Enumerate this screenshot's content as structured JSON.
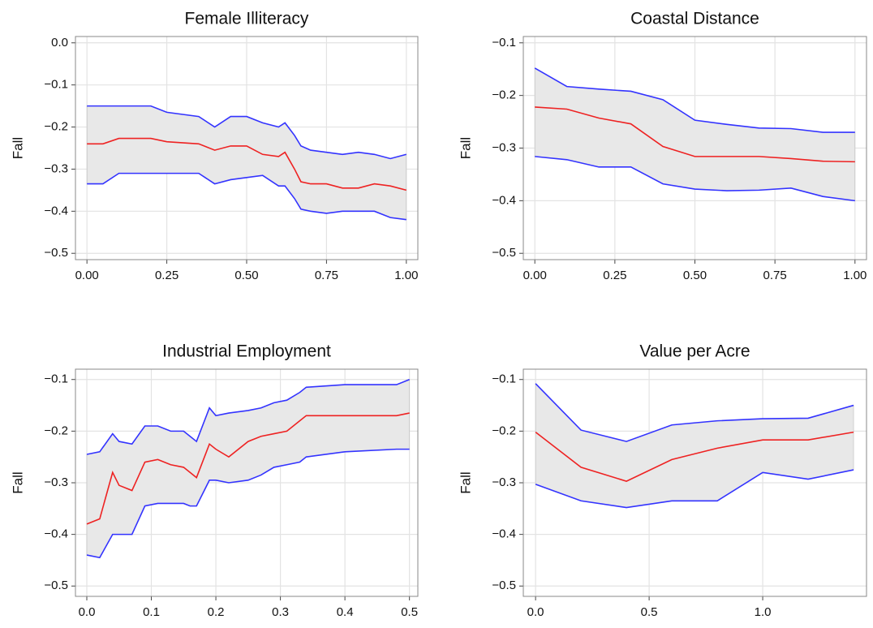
{
  "chart_data": [
    {
      "type": "line",
      "title": "Female Illiteracy",
      "ylabel": "Fall",
      "band_color": "#e8e8e8",
      "grid": true,
      "x": [
        0,
        0.05,
        0.1,
        0.2,
        0.25,
        0.35,
        0.4,
        0.45,
        0.5,
        0.55,
        0.6,
        0.62,
        0.65,
        0.67,
        0.7,
        0.75,
        0.8,
        0.85,
        0.9,
        0.95,
        1.0
      ],
      "series": [
        {
          "color": "#3333ff",
          "values": [
            -0.15,
            -0.15,
            -0.15,
            -0.15,
            -0.165,
            -0.175,
            -0.2,
            -0.175,
            -0.175,
            -0.19,
            -0.2,
            -0.19,
            -0.22,
            -0.245,
            -0.255,
            -0.26,
            -0.265,
            -0.26,
            -0.265,
            -0.275,
            -0.265
          ]
        },
        {
          "color": "#ee2222",
          "values": [
            -0.24,
            -0.24,
            -0.227,
            -0.227,
            -0.235,
            -0.24,
            -0.255,
            -0.245,
            -0.245,
            -0.265,
            -0.27,
            -0.26,
            -0.3,
            -0.33,
            -0.335,
            -0.335,
            -0.345,
            -0.345,
            -0.335,
            -0.34,
            -0.35
          ]
        },
        {
          "color": "#3333ff",
          "values": [
            -0.335,
            -0.335,
            -0.31,
            -0.31,
            -0.31,
            -0.31,
            -0.335,
            -0.325,
            -0.32,
            -0.315,
            -0.34,
            -0.34,
            -0.37,
            -0.395,
            -0.4,
            -0.405,
            -0.4,
            -0.4,
            -0.4,
            -0.415,
            -0.42
          ]
        }
      ],
      "xlim": [
        -0.036,
        1.036
      ],
      "ylim": [
        -0.515,
        0.015
      ],
      "xticks": [
        {
          "value": 0,
          "label": "0.00"
        },
        {
          "value": 0.25,
          "label": "0.25"
        },
        {
          "value": 0.5,
          "label": "0.50"
        },
        {
          "value": 0.75,
          "label": "0.75"
        },
        {
          "value": 1,
          "label": "1.00"
        }
      ],
      "yticks": [
        {
          "value": 0,
          "label": "0.0"
        },
        {
          "value": -0.1,
          "label": "−0.1"
        },
        {
          "value": -0.2,
          "label": "−0.2"
        },
        {
          "value": -0.3,
          "label": "−0.3"
        },
        {
          "value": -0.4,
          "label": "−0.4"
        },
        {
          "value": -0.5,
          "label": "−0.5"
        }
      ]
    },
    {
      "type": "line",
      "title": "Coastal Distance",
      "ylabel": "Fall",
      "band_color": "#e8e8e8",
      "grid": true,
      "x": [
        0,
        0.1,
        0.2,
        0.3,
        0.4,
        0.5,
        0.6,
        0.7,
        0.8,
        0.9,
        1.0
      ],
      "series": [
        {
          "color": "#3333ff",
          "values": [
            -0.148,
            -0.183,
            -0.188,
            -0.192,
            -0.208,
            -0.247,
            -0.255,
            -0.262,
            -0.263,
            -0.27,
            -0.27
          ]
        },
        {
          "color": "#ee2222",
          "values": [
            -0.222,
            -0.226,
            -0.243,
            -0.254,
            -0.297,
            -0.316,
            -0.316,
            -0.316,
            -0.32,
            -0.325,
            -0.326
          ]
        },
        {
          "color": "#3333ff",
          "values": [
            -0.316,
            -0.322,
            -0.336,
            -0.336,
            -0.368,
            -0.378,
            -0.381,
            -0.38,
            -0.376,
            -0.392,
            -0.4
          ]
        }
      ],
      "xlim": [
        -0.036,
        1.036
      ],
      "ylim": [
        -0.512,
        -0.088
      ],
      "xticks": [
        {
          "value": 0,
          "label": "0.00"
        },
        {
          "value": 0.25,
          "label": "0.25"
        },
        {
          "value": 0.5,
          "label": "0.50"
        },
        {
          "value": 0.75,
          "label": "0.75"
        },
        {
          "value": 1,
          "label": "1.00"
        }
      ],
      "yticks": [
        {
          "value": -0.1,
          "label": "−0.1"
        },
        {
          "value": -0.2,
          "label": "−0.2"
        },
        {
          "value": -0.3,
          "label": "−0.3"
        },
        {
          "value": -0.4,
          "label": "−0.4"
        },
        {
          "value": -0.5,
          "label": "−0.5"
        }
      ]
    },
    {
      "type": "line",
      "title": "Industrial Employment",
      "ylabel": "Fall",
      "band_color": "#e8e8e8",
      "grid": true,
      "x": [
        0,
        0.02,
        0.04,
        0.05,
        0.07,
        0.09,
        0.11,
        0.13,
        0.15,
        0.16,
        0.17,
        0.19,
        0.2,
        0.22,
        0.25,
        0.27,
        0.29,
        0.31,
        0.33,
        0.34,
        0.4,
        0.48,
        0.5
      ],
      "series": [
        {
          "color": "#3333ff",
          "values": [
            -0.245,
            -0.24,
            -0.205,
            -0.22,
            -0.225,
            -0.19,
            -0.19,
            -0.2,
            -0.2,
            -0.21,
            -0.22,
            -0.155,
            -0.17,
            -0.165,
            -0.16,
            -0.155,
            -0.145,
            -0.14,
            -0.125,
            -0.115,
            -0.11,
            -0.11,
            -0.1
          ]
        },
        {
          "color": "#ee2222",
          "values": [
            -0.38,
            -0.37,
            -0.28,
            -0.305,
            -0.315,
            -0.26,
            -0.255,
            -0.265,
            -0.27,
            -0.28,
            -0.29,
            -0.225,
            -0.235,
            -0.25,
            -0.22,
            -0.21,
            -0.205,
            -0.2,
            -0.18,
            -0.17,
            -0.17,
            -0.17,
            -0.165
          ]
        },
        {
          "color": "#3333ff",
          "values": [
            -0.44,
            -0.445,
            -0.4,
            -0.4,
            -0.4,
            -0.345,
            -0.34,
            -0.34,
            -0.34,
            -0.345,
            -0.345,
            -0.295,
            -0.295,
            -0.3,
            -0.295,
            -0.285,
            -0.27,
            -0.265,
            -0.26,
            -0.25,
            -0.24,
            -0.235,
            -0.235
          ]
        }
      ],
      "xlim": [
        -0.0176,
        0.513
      ],
      "ylim": [
        -0.52,
        -0.08
      ],
      "xticks": [
        {
          "value": 0,
          "label": "0.0"
        },
        0.1,
        0.2,
        0.3,
        0.4,
        0.5
      ],
      "yticks": [
        {
          "value": -0.1,
          "label": "−0.1"
        },
        {
          "value": -0.2,
          "label": "−0.2"
        },
        {
          "value": -0.3,
          "label": "−0.3"
        },
        {
          "value": -0.4,
          "label": "−0.4"
        },
        {
          "value": -0.5,
          "label": "−0.5"
        }
      ]
    },
    {
      "type": "line",
      "title": "Value per Acre",
      "ylabel": "Fall",
      "band_color": "#e8e8e8",
      "grid": true,
      "x": [
        0,
        0.2,
        0.4,
        0.6,
        0.8,
        1.0,
        1.2,
        1.4
      ],
      "series": [
        {
          "color": "#3333ff",
          "values": [
            -0.108,
            -0.198,
            -0.22,
            -0.188,
            -0.18,
            -0.176,
            -0.175,
            -0.15
          ]
        },
        {
          "color": "#ee2222",
          "values": [
            -0.202,
            -0.27,
            -0.297,
            -0.255,
            -0.233,
            -0.217,
            -0.217,
            -0.202
          ]
        },
        {
          "color": "#3333ff",
          "values": [
            -0.303,
            -0.335,
            -0.348,
            -0.335,
            -0.335,
            -0.28,
            -0.293,
            -0.275
          ]
        }
      ],
      "xlim": [
        -0.054,
        1.457
      ],
      "ylim": [
        -0.52,
        -0.08
      ],
      "xticks": [
        {
          "value": 0,
          "label": "0.0"
        },
        0.5,
        {
          "value": 1,
          "label": "1.0"
        }
      ],
      "yticks": [
        {
          "value": -0.1,
          "label": "−0.1"
        },
        {
          "value": -0.2,
          "label": "−0.2"
        },
        {
          "value": -0.3,
          "label": "−0.3"
        },
        {
          "value": -0.4,
          "label": "−0.4"
        },
        {
          "value": -0.5,
          "label": "−0.5"
        }
      ]
    }
  ]
}
